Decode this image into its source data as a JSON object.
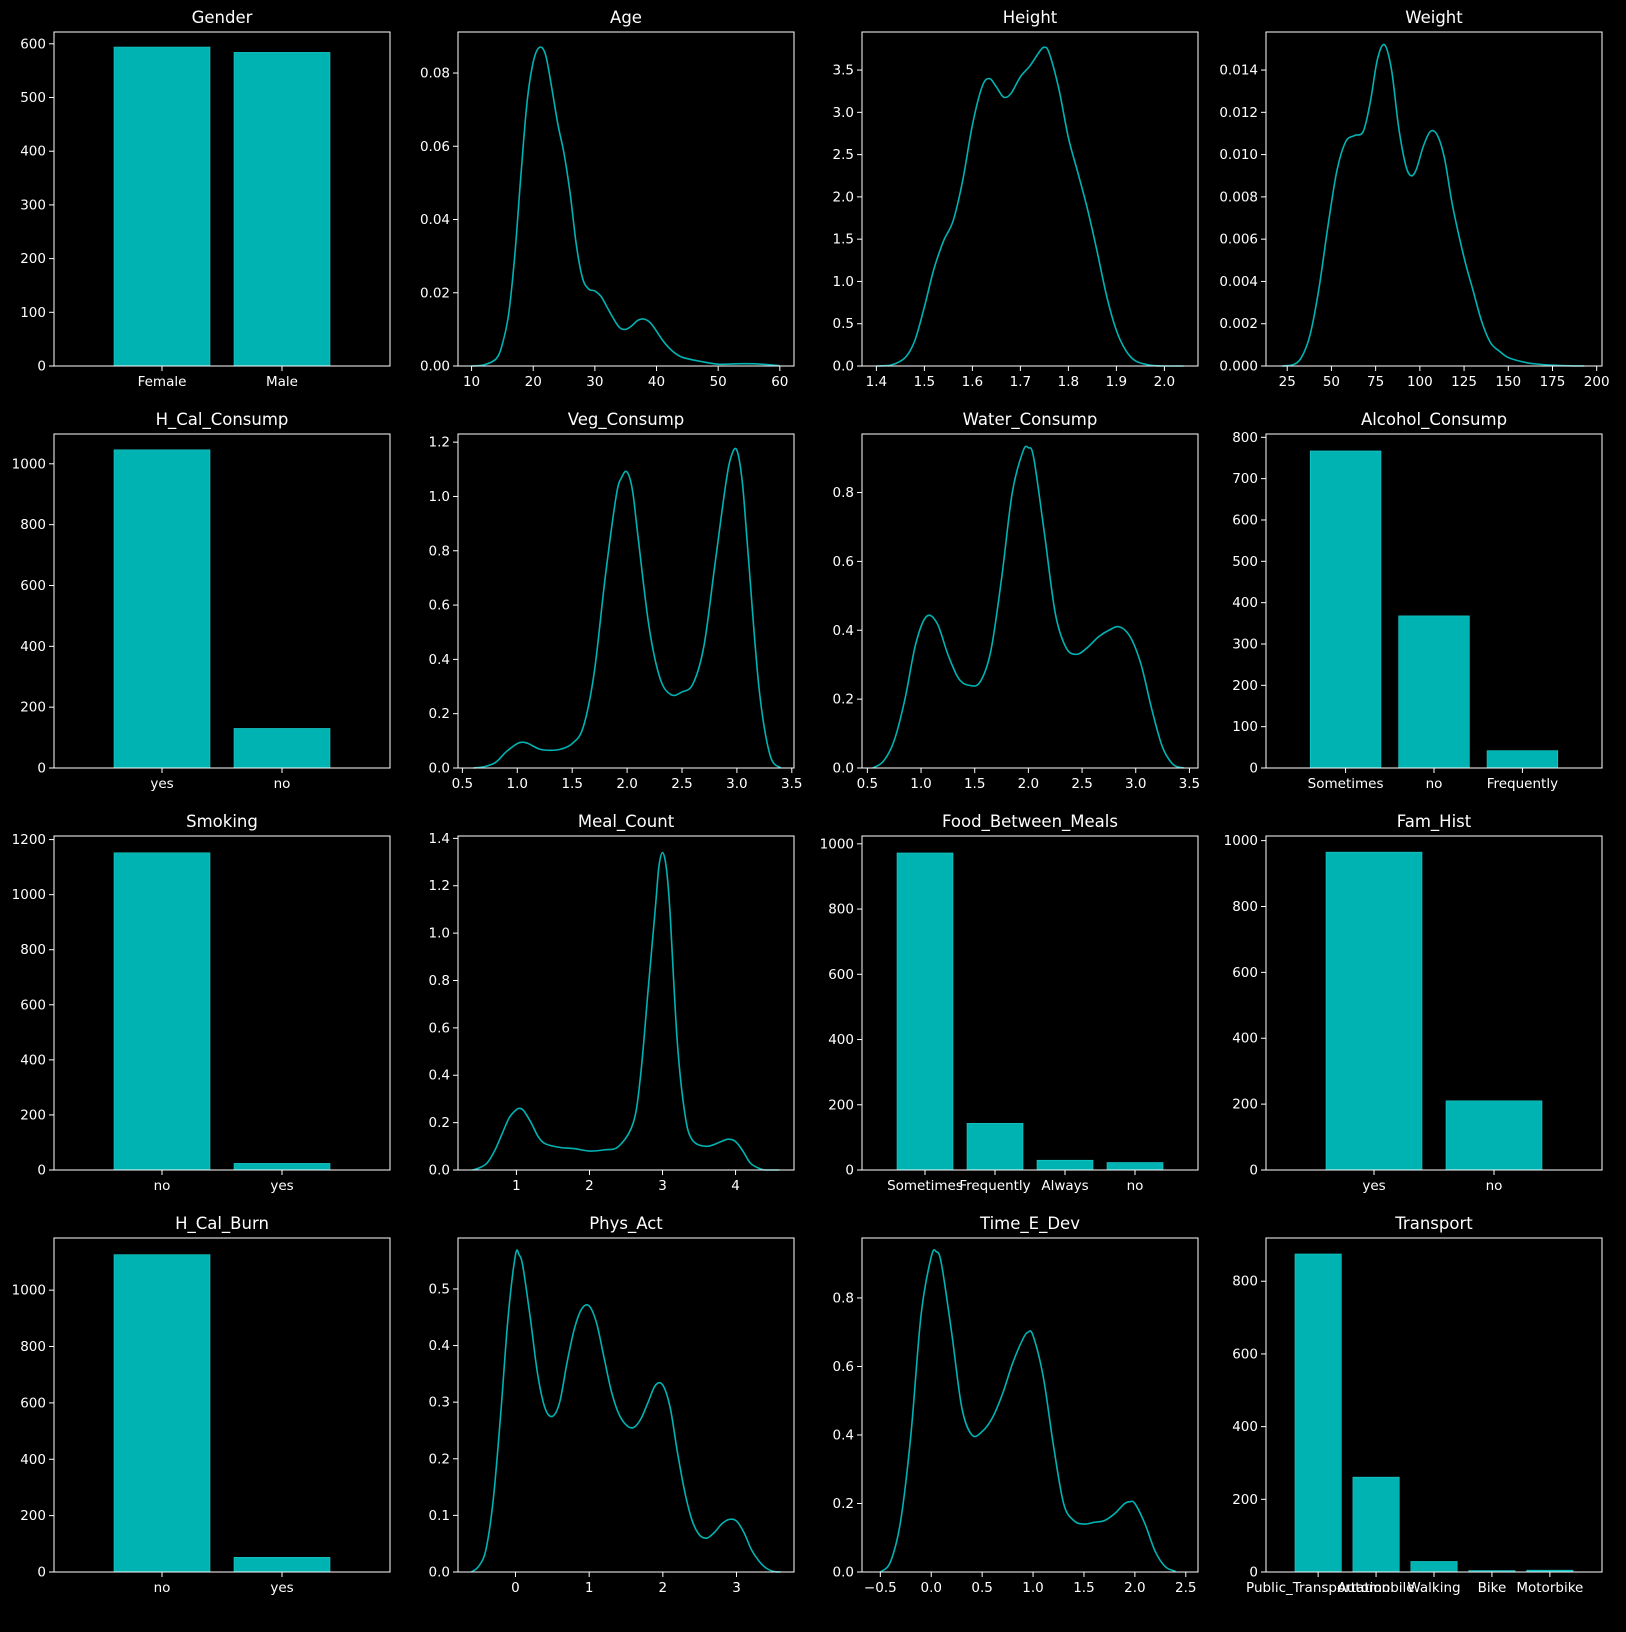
{
  "colors": {
    "background": "#000000",
    "mark": "#00b3b3",
    "axis": "#ffffff"
  },
  "chart_data": [
    {
      "type": "bar",
      "title": "Gender",
      "categories": [
        "Female",
        "Male"
      ],
      "values": [
        594,
        584
      ],
      "ylim": [
        0,
        622
      ],
      "yticks": [
        0,
        100,
        200,
        300,
        400,
        500,
        600
      ]
    },
    {
      "type": "line",
      "title": "Age",
      "xlim": [
        7.8,
        62.3
      ],
      "ylim": [
        0,
        0.0912
      ],
      "xticks": [
        10,
        20,
        30,
        40,
        50,
        60
      ],
      "yticks": [
        0.0,
        0.02,
        0.04,
        0.06,
        0.08
      ],
      "yticklabels": [
        "0.00",
        "0.02",
        "0.04",
        "0.06",
        "0.08"
      ],
      "x": [
        10,
        12,
        14,
        15,
        16,
        17,
        18,
        19,
        20,
        21,
        22,
        23,
        24,
        25,
        26,
        27,
        28,
        29,
        30,
        31,
        32,
        33,
        34,
        35,
        36,
        37,
        38,
        39,
        40,
        41,
        42,
        43,
        44,
        45,
        47,
        50,
        53,
        56,
        60
      ],
      "y": [
        0,
        0.0003,
        0.002,
        0.006,
        0.014,
        0.03,
        0.052,
        0.072,
        0.083,
        0.087,
        0.085,
        0.076,
        0.066,
        0.058,
        0.047,
        0.033,
        0.024,
        0.021,
        0.0205,
        0.019,
        0.016,
        0.013,
        0.0105,
        0.01,
        0.011,
        0.0125,
        0.0128,
        0.0118,
        0.0095,
        0.007,
        0.005,
        0.0035,
        0.0025,
        0.002,
        0.0013,
        0.0005,
        0.0006,
        0.0006,
        0.0001
      ]
    },
    {
      "type": "line",
      "title": "Height",
      "xlim": [
        1.37,
        2.07
      ],
      "ylim": [
        0,
        3.95
      ],
      "xticks": [
        1.4,
        1.5,
        1.6,
        1.7,
        1.8,
        1.9,
        2.0
      ],
      "yticks": [
        0,
        0.5,
        1.0,
        1.5,
        2.0,
        2.5,
        3.0,
        3.5
      ],
      "xticklabels": [
        "1.4",
        "1.5",
        "1.6",
        "1.7",
        "1.8",
        "1.9",
        "2.0"
      ],
      "yticklabels": [
        "0.0",
        "0.5",
        "1.0",
        "1.5",
        "2.0",
        "2.5",
        "3.0",
        "3.5"
      ],
      "x": [
        1.4,
        1.43,
        1.46,
        1.48,
        1.5,
        1.52,
        1.54,
        1.56,
        1.58,
        1.6,
        1.62,
        1.635,
        1.65,
        1.665,
        1.68,
        1.7,
        1.72,
        1.74,
        1.75,
        1.76,
        1.78,
        1.8,
        1.82,
        1.84,
        1.86,
        1.88,
        1.9,
        1.92,
        1.94,
        1.97,
        2.0,
        2.04
      ],
      "y": [
        0.0,
        0.01,
        0.1,
        0.3,
        0.7,
        1.15,
        1.48,
        1.72,
        2.2,
        2.85,
        3.3,
        3.4,
        3.3,
        3.18,
        3.22,
        3.42,
        3.55,
        3.72,
        3.77,
        3.7,
        3.28,
        2.7,
        2.28,
        1.85,
        1.35,
        0.82,
        0.42,
        0.18,
        0.06,
        0.01,
        0.0,
        0.0
      ]
    },
    {
      "type": "line",
      "title": "Weight",
      "xlim": [
        13,
        203
      ],
      "ylim": [
        0,
        0.0158
      ],
      "xticks": [
        25,
        50,
        75,
        100,
        125,
        150,
        175,
        200
      ],
      "yticks": [
        0.0,
        0.002,
        0.004,
        0.006,
        0.008,
        0.01,
        0.012,
        0.014
      ],
      "yticklabels": [
        "0.000",
        "0.002",
        "0.004",
        "0.006",
        "0.008",
        "0.010",
        "0.012",
        "0.014"
      ],
      "x": [
        22,
        28,
        33,
        38,
        43,
        48,
        53,
        58,
        63,
        68,
        72,
        76,
        80,
        84,
        88,
        92,
        95,
        98,
        102,
        106,
        110,
        114,
        118,
        122,
        126,
        130,
        135,
        140,
        145,
        150,
        158,
        165,
        175,
        185,
        193
      ],
      "y": [
        0,
        5e-05,
        0.0004,
        0.0015,
        0.0037,
        0.0066,
        0.0092,
        0.0106,
        0.0109,
        0.0111,
        0.0125,
        0.0145,
        0.0152,
        0.014,
        0.0113,
        0.0095,
        0.009,
        0.0093,
        0.0104,
        0.0111,
        0.0109,
        0.0098,
        0.0078,
        0.0062,
        0.0048,
        0.0036,
        0.0021,
        0.0011,
        0.0007,
        0.0004,
        0.0002,
        0.0001,
        4e-05,
        1e-05,
        0
      ]
    },
    {
      "type": "bar",
      "title": "H_Cal_Consump",
      "categories": [
        "yes",
        "no"
      ],
      "values": [
        1046,
        130
      ],
      "ylim": [
        0,
        1098
      ],
      "yticks": [
        0,
        200,
        400,
        600,
        800,
        1000
      ]
    },
    {
      "type": "line",
      "title": "Veg_Consump",
      "xlim": [
        0.46,
        3.52
      ],
      "ylim": [
        0,
        1.23
      ],
      "xticks": [
        0.5,
        1.0,
        1.5,
        2.0,
        2.5,
        3.0,
        3.5
      ],
      "yticks": [
        0,
        0.2,
        0.4,
        0.6,
        0.8,
        1.0,
        1.2
      ],
      "xticklabels": [
        "0.5",
        "1.0",
        "1.5",
        "2.0",
        "2.5",
        "3.0",
        "3.5"
      ],
      "yticklabels": [
        "0.0",
        "0.2",
        "0.4",
        "0.6",
        "0.8",
        "1.0",
        "1.2"
      ],
      "x": [
        0.6,
        0.7,
        0.8,
        0.9,
        1.0,
        1.05,
        1.1,
        1.2,
        1.3,
        1.4,
        1.5,
        1.6,
        1.7,
        1.8,
        1.9,
        1.95,
        2.0,
        2.05,
        2.1,
        2.2,
        2.3,
        2.4,
        2.5,
        2.6,
        2.7,
        2.8,
        2.9,
        2.95,
        3.0,
        3.05,
        3.1,
        3.2,
        3.3,
        3.4
      ],
      "y": [
        0.0,
        0.005,
        0.02,
        0.06,
        0.09,
        0.095,
        0.09,
        0.07,
        0.065,
        0.07,
        0.09,
        0.15,
        0.35,
        0.7,
        1.0,
        1.07,
        1.09,
        1.02,
        0.85,
        0.52,
        0.33,
        0.27,
        0.28,
        0.31,
        0.45,
        0.75,
        1.05,
        1.15,
        1.17,
        1.05,
        0.8,
        0.3,
        0.05,
        0.0
      ]
    },
    {
      "type": "line",
      "title": "Water_Consump",
      "xlim": [
        0.45,
        3.58
      ],
      "ylim": [
        0,
        0.97
      ],
      "xticks": [
        0.5,
        1.0,
        1.5,
        2.0,
        2.5,
        3.0,
        3.5
      ],
      "yticks": [
        0,
        0.2,
        0.4,
        0.6,
        0.8
      ],
      "xticklabels": [
        "0.5",
        "1.0",
        "1.5",
        "2.0",
        "2.5",
        "3.0",
        "3.5"
      ],
      "yticklabels": [
        "0.0",
        "0.2",
        "0.4",
        "0.6",
        "0.8"
      ],
      "x": [
        0.55,
        0.65,
        0.75,
        0.85,
        0.95,
        1.05,
        1.15,
        1.25,
        1.35,
        1.45,
        1.55,
        1.65,
        1.75,
        1.85,
        1.95,
        2.0,
        2.05,
        2.15,
        2.25,
        2.35,
        2.45,
        2.55,
        2.65,
        2.75,
        2.85,
        2.95,
        3.05,
        3.15,
        3.25,
        3.35,
        3.45
      ],
      "y": [
        0.0,
        0.02,
        0.08,
        0.2,
        0.36,
        0.44,
        0.42,
        0.33,
        0.26,
        0.24,
        0.25,
        0.34,
        0.55,
        0.8,
        0.92,
        0.93,
        0.9,
        0.68,
        0.45,
        0.35,
        0.33,
        0.35,
        0.38,
        0.4,
        0.41,
        0.38,
        0.3,
        0.17,
        0.06,
        0.01,
        0.0
      ]
    },
    {
      "type": "bar",
      "title": "Alcohol_Consump",
      "categories": [
        "Sometimes",
        "no",
        "Frequently"
      ],
      "values": [
        767,
        368,
        42
      ],
      "ylim": [
        0,
        808
      ],
      "yticks": [
        0,
        100,
        200,
        300,
        400,
        500,
        600,
        700,
        800
      ]
    },
    {
      "type": "bar",
      "title": "Smoking",
      "categories": [
        "no",
        "yes"
      ],
      "values": [
        1152,
        24
      ],
      "ylim": [
        0,
        1213
      ],
      "yticks": [
        0,
        200,
        400,
        600,
        800,
        1000,
        1200
      ]
    },
    {
      "type": "line",
      "title": "Meal_Count",
      "xlim": [
        0.2,
        4.8
      ],
      "ylim": [
        0,
        1.41
      ],
      "xticks": [
        1,
        2,
        3,
        4
      ],
      "yticks": [
        0,
        0.2,
        0.4,
        0.6,
        0.8,
        1.0,
        1.2,
        1.4
      ],
      "yticklabels": [
        "0.0",
        "0.2",
        "0.4",
        "0.6",
        "0.8",
        "1.0",
        "1.2",
        "1.4"
      ],
      "x": [
        0.4,
        0.5,
        0.6,
        0.7,
        0.8,
        0.9,
        1.0,
        1.05,
        1.1,
        1.2,
        1.3,
        1.4,
        1.6,
        1.8,
        2.0,
        2.2,
        2.4,
        2.6,
        2.7,
        2.8,
        2.9,
        2.95,
        3.0,
        3.05,
        3.1,
        3.2,
        3.3,
        3.4,
        3.6,
        3.8,
        3.9,
        4.0,
        4.1,
        4.2,
        4.3,
        4.4,
        4.6
      ],
      "y": [
        0.0,
        0.01,
        0.03,
        0.08,
        0.15,
        0.22,
        0.255,
        0.26,
        0.25,
        0.2,
        0.14,
        0.11,
        0.095,
        0.09,
        0.08,
        0.085,
        0.1,
        0.2,
        0.4,
        0.75,
        1.1,
        1.28,
        1.34,
        1.28,
        1.1,
        0.55,
        0.25,
        0.13,
        0.1,
        0.12,
        0.13,
        0.12,
        0.08,
        0.03,
        0.01,
        0.0,
        0.0
      ]
    },
    {
      "type": "bar",
      "title": "Food_Between_Meals",
      "categories": [
        "Sometimes",
        "Frequently",
        "Always",
        "no"
      ],
      "values": [
        972,
        143,
        30,
        23
      ],
      "ylim": [
        0,
        1024
      ],
      "yticks": [
        0,
        200,
        400,
        600,
        800,
        1000
      ]
    },
    {
      "type": "bar",
      "title": "Fam_Hist",
      "categories": [
        "yes",
        "no"
      ],
      "values": [
        965,
        210
      ],
      "ylim": [
        0,
        1014
      ],
      "yticks": [
        0,
        200,
        400,
        600,
        800,
        1000
      ]
    },
    {
      "type": "bar",
      "title": "H_Cal_Burn",
      "categories": [
        "no",
        "yes"
      ],
      "values": [
        1126,
        52
      ],
      "ylim": [
        0,
        1185
      ],
      "yticks": [
        0,
        200,
        400,
        600,
        800,
        1000
      ]
    },
    {
      "type": "line",
      "title": "Phys_Act",
      "xlim": [
        -0.78,
        3.78
      ],
      "ylim": [
        0,
        0.59
      ],
      "xticks": [
        0,
        1,
        2,
        3
      ],
      "yticks": [
        0,
        0.1,
        0.2,
        0.3,
        0.4,
        0.5
      ],
      "yticklabels": [
        "0.0",
        "0.1",
        "0.2",
        "0.3",
        "0.4",
        "0.5"
      ],
      "x": [
        -0.6,
        -0.5,
        -0.4,
        -0.3,
        -0.2,
        -0.1,
        0.0,
        0.05,
        0.1,
        0.2,
        0.3,
        0.4,
        0.5,
        0.6,
        0.7,
        0.8,
        0.9,
        1.0,
        1.1,
        1.2,
        1.3,
        1.4,
        1.5,
        1.6,
        1.7,
        1.8,
        1.9,
        2.0,
        2.1,
        2.2,
        2.3,
        2.4,
        2.5,
        2.6,
        2.7,
        2.8,
        2.9,
        3.0,
        3.1,
        3.2,
        3.3,
        3.4,
        3.5,
        3.6
      ],
      "y": [
        0.0,
        0.01,
        0.04,
        0.13,
        0.28,
        0.45,
        0.56,
        0.56,
        0.54,
        0.45,
        0.35,
        0.29,
        0.275,
        0.3,
        0.37,
        0.43,
        0.465,
        0.47,
        0.44,
        0.38,
        0.32,
        0.28,
        0.26,
        0.255,
        0.27,
        0.3,
        0.33,
        0.33,
        0.29,
        0.21,
        0.14,
        0.09,
        0.065,
        0.06,
        0.07,
        0.085,
        0.093,
        0.09,
        0.07,
        0.04,
        0.02,
        0.007,
        0.001,
        0.0
      ]
    },
    {
      "type": "line",
      "title": "Time_E_Dev",
      "xlim": [
        -0.68,
        2.62
      ],
      "ylim": [
        0,
        0.975
      ],
      "xticks": [
        -0.5,
        0.0,
        0.5,
        1.0,
        1.5,
        2.0,
        2.5
      ],
      "yticks": [
        0,
        0.2,
        0.4,
        0.6,
        0.8
      ],
      "xticklabels": [
        "−0.5",
        "0.0",
        "0.5",
        "1.0",
        "1.5",
        "2.0",
        "2.5"
      ],
      "yticklabels": [
        "0.0",
        "0.2",
        "0.4",
        "0.6",
        "0.8"
      ],
      "x": [
        -0.5,
        -0.4,
        -0.3,
        -0.2,
        -0.1,
        0.0,
        0.05,
        0.1,
        0.2,
        0.3,
        0.4,
        0.5,
        0.6,
        0.7,
        0.8,
        0.9,
        0.95,
        1.0,
        1.1,
        1.2,
        1.3,
        1.4,
        1.5,
        1.6,
        1.7,
        1.8,
        1.9,
        1.95,
        2.0,
        2.1,
        2.2,
        2.3,
        2.4
      ],
      "y": [
        0.0,
        0.03,
        0.15,
        0.4,
        0.75,
        0.92,
        0.935,
        0.9,
        0.7,
        0.48,
        0.4,
        0.41,
        0.45,
        0.52,
        0.61,
        0.68,
        0.7,
        0.69,
        0.57,
        0.37,
        0.2,
        0.15,
        0.14,
        0.145,
        0.15,
        0.17,
        0.2,
        0.205,
        0.2,
        0.14,
        0.06,
        0.015,
        0.002
      ]
    },
    {
      "type": "bar",
      "title": "Transport",
      "categories": [
        "Public_Transportation",
        "Automobile",
        "Walking",
        "Bike",
        "Motorbike"
      ],
      "values": [
        875,
        261,
        29,
        4,
        5
      ],
      "ylim": [
        0,
        919
      ],
      "yticks": [
        0,
        200,
        400,
        600,
        800
      ]
    }
  ]
}
